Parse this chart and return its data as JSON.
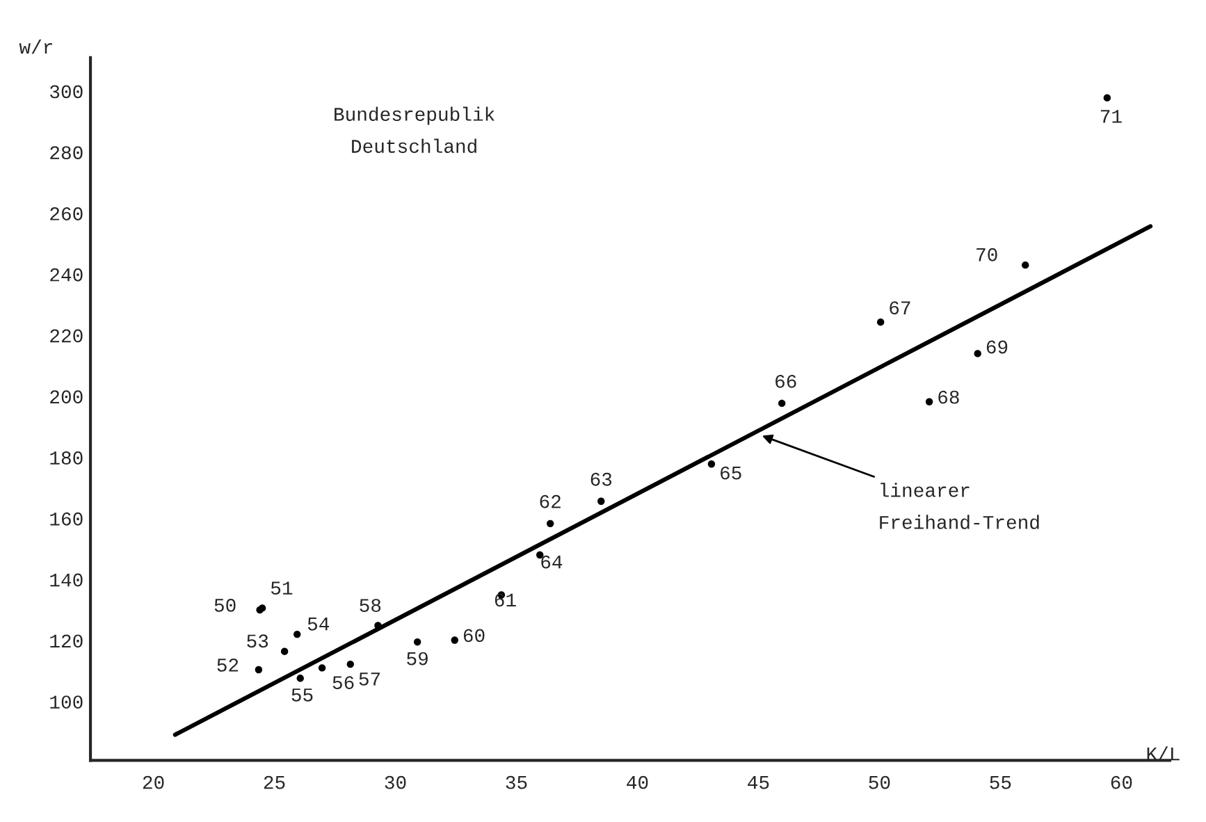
{
  "chart_data": {
    "type": "scatter",
    "xlabel": "K/L",
    "ylabel": "w/r",
    "annotations": [
      "Bundesrepublik\nDeutschland",
      {
        "text": "linearer\nFreihand-Trend",
        "x": 45.0,
        "y": 187.5
      },
      {
        "text": "50",
        "x": 24.4,
        "y": 130.0
      },
      {
        "text": "51",
        "x": 24.5,
        "y": 130.6
      },
      {
        "text": "52",
        "x": 24.35,
        "y": 110.4
      },
      {
        "text": "53",
        "x": 25.42,
        "y": 116.4
      },
      {
        "text": "54",
        "x": 25.94,
        "y": 122.0
      },
      {
        "text": "55",
        "x": 26.07,
        "y": 107.6
      },
      {
        "text": "56",
        "x": 26.97,
        "y": 111.0
      },
      {
        "text": "57",
        "x": 28.14,
        "y": 112.2
      },
      {
        "text": "58",
        "x": 29.28,
        "y": 124.9
      },
      {
        "text": "59",
        "x": 30.91,
        "y": 119.5
      },
      {
        "text": "60",
        "x": 32.45,
        "y": 120.1
      },
      {
        "text": "61",
        "x": 34.38,
        "y": 134.9
      },
      {
        "text": "62",
        "x": 36.4,
        "y": 158.3
      },
      {
        "text": "63",
        "x": 38.5,
        "y": 165.6
      },
      {
        "text": "64",
        "x": 35.97,
        "y": 148.0
      },
      {
        "text": "65",
        "x": 43.06,
        "y": 177.8
      },
      {
        "text": "66",
        "x": 45.97,
        "y": 197.7
      },
      {
        "text": "67",
        "x": 50.05,
        "y": 224.3
      },
      {
        "text": "68",
        "x": 52.06,
        "y": 198.2
      },
      {
        "text": "69",
        "x": 54.06,
        "y": 214.0
      },
      {
        "text": "70",
        "x": 56.03,
        "y": 243.0
      },
      {
        "text": "71",
        "x": 59.41,
        "y": 297.8
      }
    ],
    "xlim": [
      17.4,
      62
    ],
    "ylim": [
      80.7,
      311
    ],
    "xticks": [
      20,
      25,
      30,
      35,
      40,
      45,
      50,
      55,
      60
    ],
    "yticks": [
      100,
      120,
      140,
      160,
      180,
      200,
      220,
      240,
      260,
      280,
      300
    ],
    "grid": false,
    "series": [
      {
        "color": "#000000",
        "marker": "circle",
        "x": [
          24.4,
          24.5,
          24.35,
          25.42,
          25.94,
          26.07,
          26.97,
          28.14,
          29.28,
          30.91,
          32.45,
          34.38,
          36.4,
          38.5,
          35.97,
          43.06,
          45.97,
          50.05,
          52.06,
          54.06,
          56.03,
          59.41
        ],
        "values": [
          130.0,
          130.6,
          110.4,
          116.4,
          122.0,
          107.6,
          111.0,
          112.2,
          124.9,
          119.5,
          120.1,
          134.9,
          158.3,
          165.6,
          148.0,
          177.8,
          197.7,
          224.3,
          198.2,
          214.0,
          243.0,
          297.8
        ]
      },
      {
        "type": "line",
        "color": "#000000",
        "x": [
          20.9,
          61.2
        ],
        "values": [
          89.1,
          255.7
        ]
      }
    ]
  }
}
